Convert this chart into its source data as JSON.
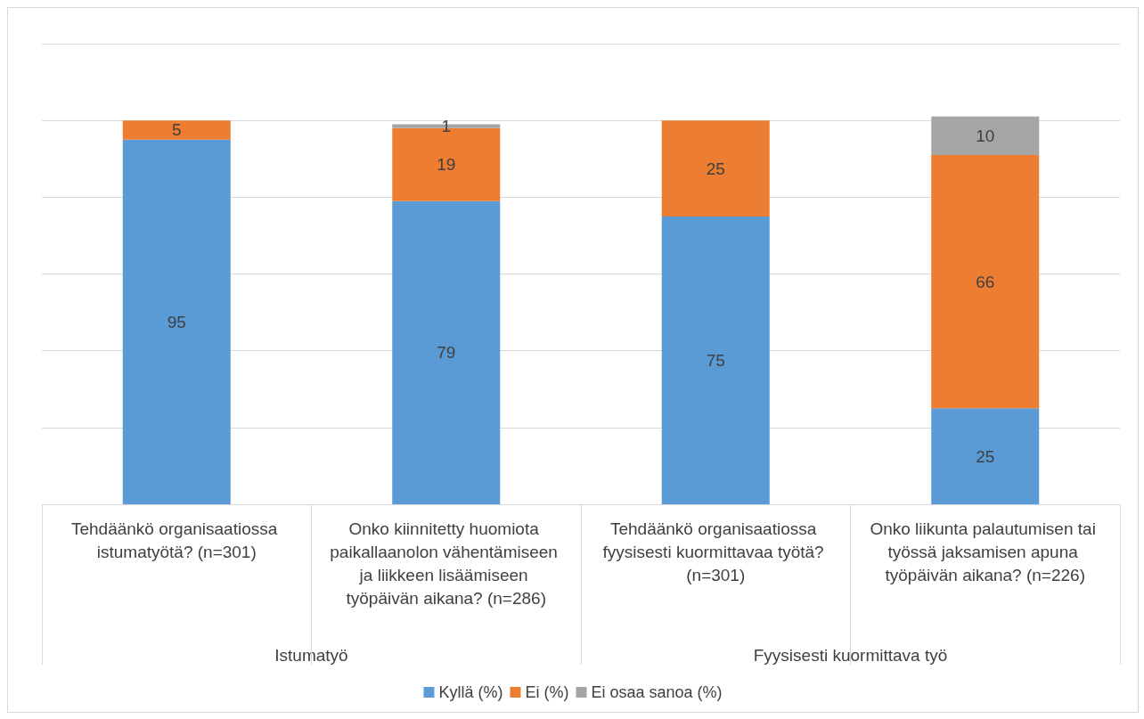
{
  "chart_data": {
    "type": "bar",
    "stacked": true,
    "categories": [
      "Tehdäänkö organisaatiossa istumatyötä? (n=301)",
      "Onko kiinnitetty huomiota paikallaanolon vähentämiseen ja liikkeen lisäämiseen työpäivän aikana? (n=286)",
      "Tehdäänkö organisaatiossa fyysisesti kuormittavaa työtä? (n=301)",
      "Onko liikunta palautumisen tai työssä jaksamisen apuna työpäivän aikana? (n=226)"
    ],
    "series": [
      {
        "name": "Kyllä (%)",
        "color": "#5b9bd5",
        "values": [
          95,
          79,
          75,
          25
        ]
      },
      {
        "name": "Ei (%)",
        "color": "#ed7d31",
        "values": [
          5,
          19,
          25,
          66
        ]
      },
      {
        "name": "Ei osaa sanoa (%)",
        "color": "#a5a5a5",
        "values": [
          null,
          1,
          null,
          10
        ]
      }
    ],
    "ylim": [
      0,
      120
    ],
    "yticks": [
      {
        "value": 0,
        "label": null
      },
      {
        "value": 20,
        "label": null
      },
      {
        "value": 40,
        "label": null
      },
      {
        "value": 60,
        "label": null
      },
      {
        "value": 80,
        "label": null
      },
      {
        "value": 100,
        "label": null
      },
      {
        "value": 120,
        "label": null
      }
    ],
    "grid": "y",
    "tick_labels": "x",
    "data_labels": true,
    "legend": "bottom",
    "annotations": [
      "Istumatyö",
      "Fyysisesti kuormittava työ"
    ]
  }
}
